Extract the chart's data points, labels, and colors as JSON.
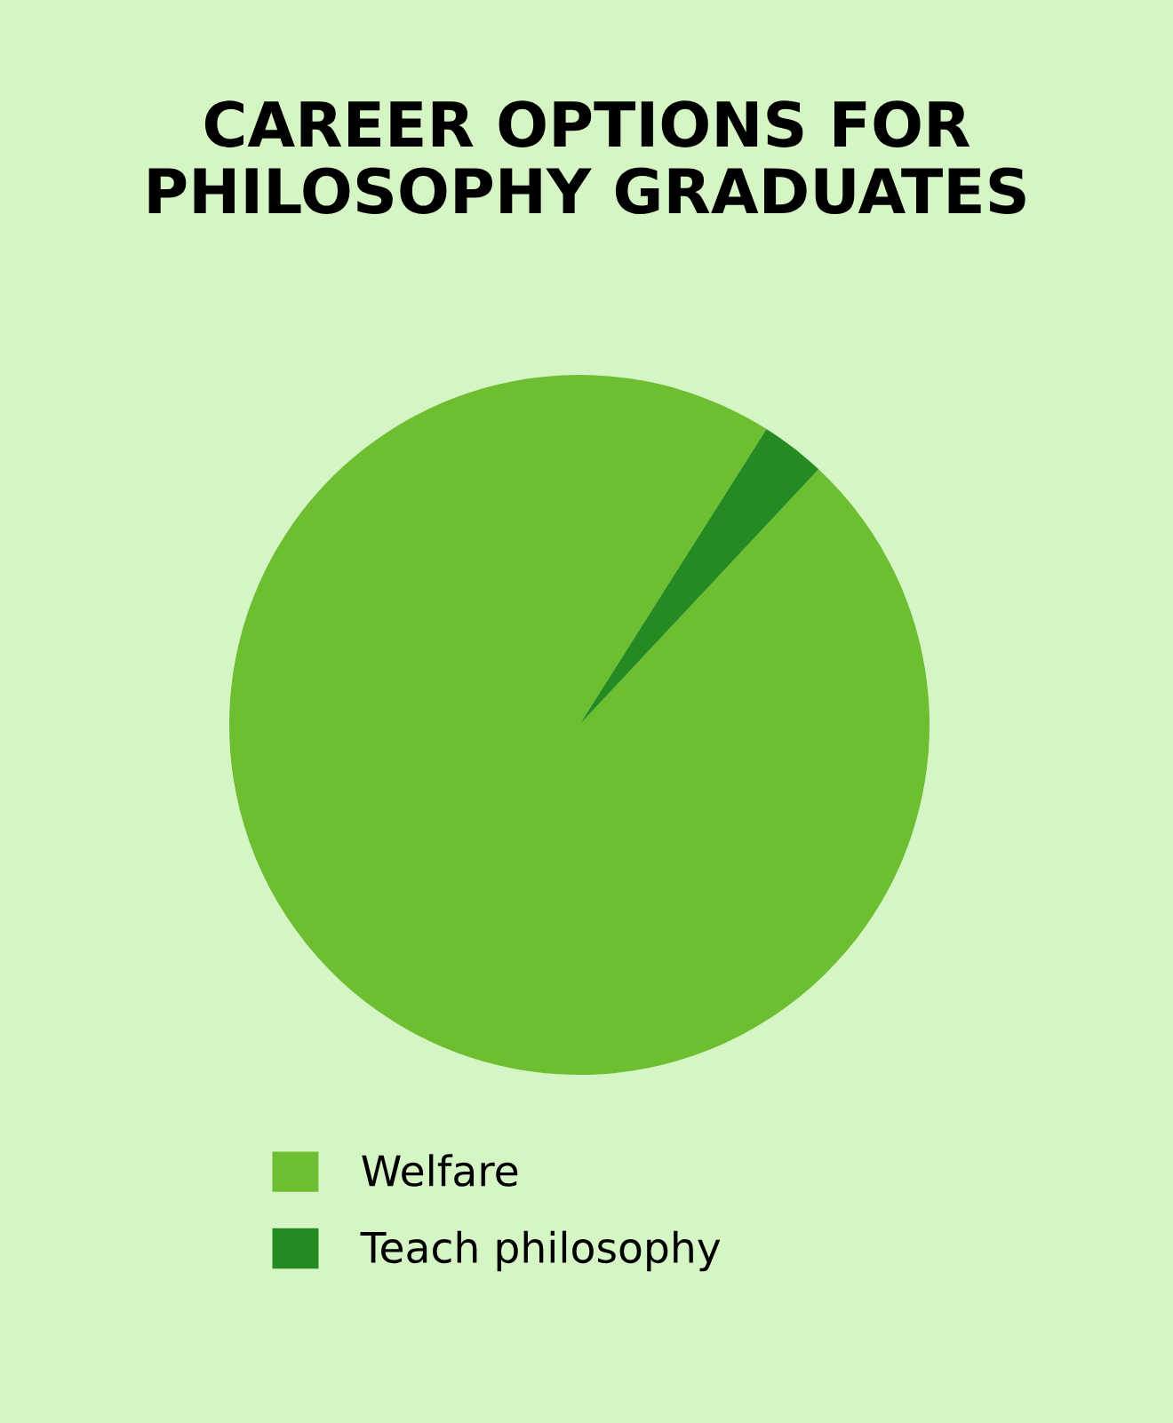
{
  "chart_data": {
    "type": "pie",
    "title": "CAREER OPTIONS FOR\nPHILOSOPHY GRADUATES",
    "categories": [
      "Welfare",
      "Teach philosophy"
    ],
    "values": [
      97,
      3
    ],
    "colors": [
      "#6dbf31",
      "#248b22"
    ],
    "legend": "bottom"
  }
}
